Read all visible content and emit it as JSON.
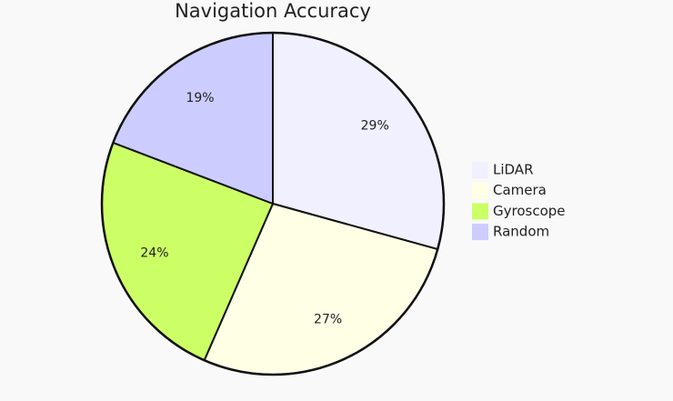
{
  "chart_data": {
    "type": "pie",
    "title": "Navigation Accuracy",
    "categories": [
      "LiDAR",
      "Camera",
      "Gyroscope",
      "Random"
    ],
    "values": [
      29,
      27,
      24,
      19
    ],
    "value_labels": [
      "29%",
      "27%",
      "24%",
      "19%"
    ],
    "colors": [
      "#f0f0ff",
      "#ffffe6",
      "#ccff66",
      "#ccccff"
    ],
    "legend": "right"
  }
}
